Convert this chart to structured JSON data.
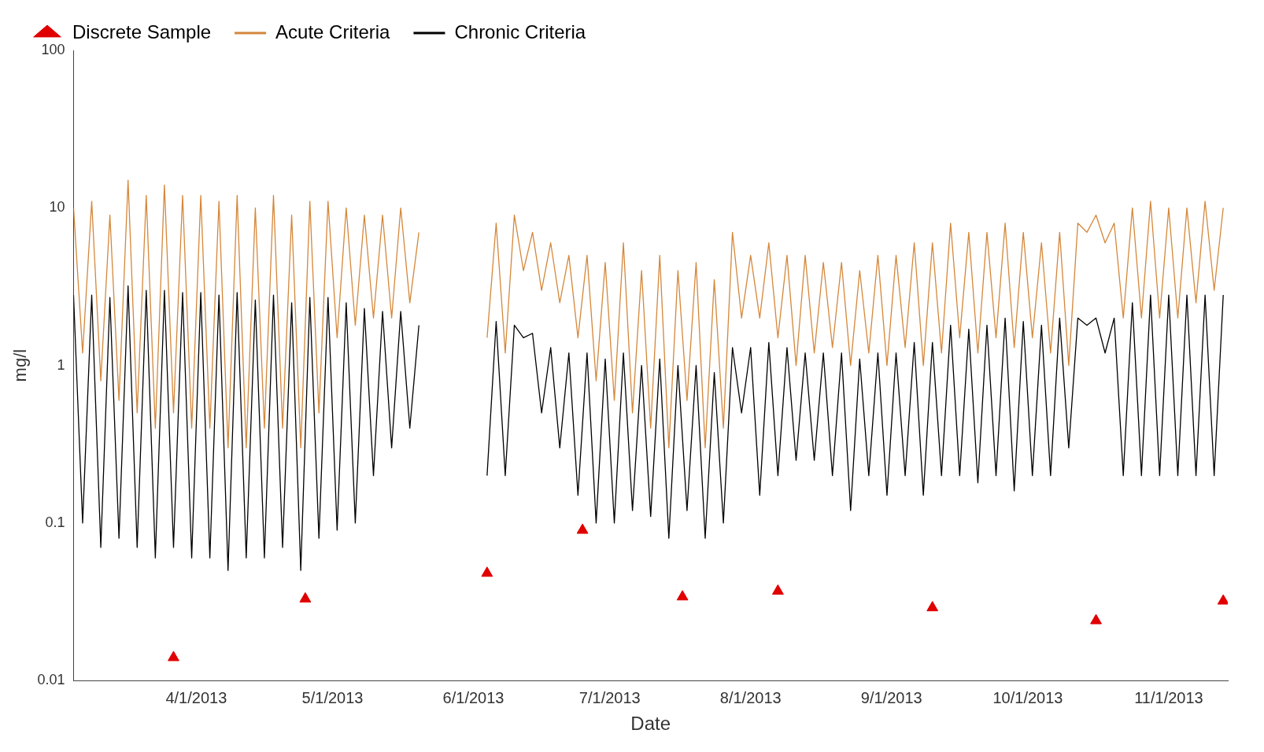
{
  "chart_data": {
    "type": "line",
    "xlabel": "Date",
    "ylabel": "mg/l",
    "log": "y",
    "grid": false,
    "legend": "top left",
    "x": [
      "2013-03-05",
      "2013-03-07",
      "2013-03-09",
      "2013-03-11",
      "2013-03-13",
      "2013-03-15",
      "2013-03-17",
      "2013-03-19",
      "2013-03-21",
      "2013-03-23",
      "2013-03-25",
      "2013-03-27",
      "2013-03-29",
      "2013-03-31",
      "2013-04-02",
      "2013-04-04",
      "2013-04-06",
      "2013-04-08",
      "2013-04-10",
      "2013-04-12",
      "2013-04-14",
      "2013-04-16",
      "2013-04-18",
      "2013-04-20",
      "2013-04-22",
      "2013-04-24",
      "2013-04-26",
      "2013-04-28",
      "2013-04-30",
      "2013-05-02",
      "2013-05-04",
      "2013-05-06",
      "2013-05-08",
      "2013-05-10",
      "2013-05-12",
      "2013-05-14",
      "2013-05-16",
      "2013-05-18",
      "2013-05-20",
      "2013-05-27",
      "2013-06-04",
      "2013-06-06",
      "2013-06-08",
      "2013-06-10",
      "2013-06-12",
      "2013-06-14",
      "2013-06-16",
      "2013-06-18",
      "2013-06-20",
      "2013-06-22",
      "2013-06-24",
      "2013-06-26",
      "2013-06-28",
      "2013-06-30",
      "2013-07-02",
      "2013-07-04",
      "2013-07-06",
      "2013-07-08",
      "2013-07-10",
      "2013-07-12",
      "2013-07-14",
      "2013-07-16",
      "2013-07-18",
      "2013-07-20",
      "2013-07-22",
      "2013-07-24",
      "2013-07-26",
      "2013-07-28",
      "2013-07-30",
      "2013-08-01",
      "2013-08-03",
      "2013-08-05",
      "2013-08-07",
      "2013-08-09",
      "2013-08-11",
      "2013-08-13",
      "2013-08-15",
      "2013-08-17",
      "2013-08-19",
      "2013-08-21",
      "2013-08-23",
      "2013-08-25",
      "2013-08-27",
      "2013-08-29",
      "2013-08-31",
      "2013-09-02",
      "2013-09-04",
      "2013-09-06",
      "2013-09-08",
      "2013-09-10",
      "2013-09-12",
      "2013-09-14",
      "2013-09-16",
      "2013-09-18",
      "2013-09-20",
      "2013-09-22",
      "2013-09-24",
      "2013-09-26",
      "2013-09-28",
      "2013-09-30",
      "2013-10-02",
      "2013-10-04",
      "2013-10-06",
      "2013-10-08",
      "2013-10-10",
      "2013-10-12",
      "2013-10-14",
      "2013-10-16",
      "2013-10-18",
      "2013-10-20",
      "2013-10-22",
      "2013-10-24",
      "2013-10-26",
      "2013-10-28",
      "2013-10-30",
      "2013-11-01",
      "2013-11-03",
      "2013-11-05",
      "2013-11-07",
      "2013-11-09",
      "2013-11-11",
      "2013-11-13"
    ],
    "xlim": [
      "2013-03-05",
      "2013-11-14"
    ],
    "xticks": [
      {
        "value": "2013-04-01",
        "label": "4/1/2013"
      },
      {
        "value": "2013-05-01",
        "label": "5/1/2013"
      },
      {
        "value": "2013-06-01",
        "label": "6/1/2013"
      },
      {
        "value": "2013-07-01",
        "label": "7/1/2013"
      },
      {
        "value": "2013-08-01",
        "label": "8/1/2013"
      },
      {
        "value": "2013-09-01",
        "label": "9/1/2013"
      },
      {
        "value": "2013-10-01",
        "label": "10/1/2013"
      },
      {
        "value": "2013-11-01",
        "label": "11/1/2013"
      }
    ],
    "ylim": [
      0.01,
      100
    ],
    "yticks": [
      0.01,
      0.1,
      1,
      10,
      100
    ],
    "series": [
      {
        "name": "Discrete Sample",
        "type": "scatter",
        "marker": "triangle",
        "color": "#e00000",
        "x": [
          "2013-03-27",
          "2013-04-25",
          "2013-06-04",
          "2013-06-25",
          "2013-07-17",
          "2013-08-07",
          "2013-09-10",
          "2013-10-16",
          "2013-11-13"
        ],
        "values": [
          0.014,
          0.033,
          0.048,
          0.09,
          0.034,
          0.037,
          0.029,
          0.024,
          0.032
        ]
      },
      {
        "name": "Acute Criteria",
        "marker": "none",
        "color": "#d4873a",
        "values": [
          10,
          1.2,
          11,
          0.8,
          9,
          0.6,
          15,
          0.5,
          12,
          0.4,
          14,
          0.5,
          12,
          0.4,
          12,
          0.4,
          11,
          0.3,
          12,
          0.3,
          10,
          0.4,
          12,
          0.4,
          9,
          0.3,
          11,
          0.5,
          11,
          1.5,
          10,
          1.8,
          9,
          2,
          9,
          2,
          10,
          2.5,
          7,
          null,
          1.5,
          8,
          1.2,
          9,
          4,
          7,
          3,
          6,
          2.5,
          5,
          1.5,
          5,
          0.8,
          4.5,
          0.6,
          6,
          0.5,
          4,
          0.4,
          5,
          0.3,
          4,
          0.6,
          4.5,
          0.3,
          3.5,
          0.4,
          7,
          2,
          5,
          2,
          6,
          1.5,
          5,
          1,
          5,
          1.2,
          4.5,
          1.3,
          4.5,
          1,
          4,
          1.2,
          5,
          1,
          5,
          1.3,
          6,
          1,
          6,
          1.2,
          8,
          1.5,
          7,
          1.2,
          7,
          1.5,
          8,
          1.3,
          7,
          1.5,
          6,
          1.2,
          7,
          1,
          8,
          7,
          9,
          6,
          8,
          2,
          10,
          2,
          11,
          2,
          10,
          2,
          10,
          2.5,
          11,
          3,
          10
        ]
      },
      {
        "name": "Chronic Criteria",
        "marker": "none",
        "color": "#000000",
        "values": [
          2.8,
          0.1,
          2.8,
          0.07,
          2.7,
          0.08,
          3.2,
          0.07,
          3,
          0.06,
          3,
          0.07,
          2.9,
          0.06,
          2.9,
          0.06,
          2.8,
          0.05,
          2.9,
          0.06,
          2.6,
          0.06,
          2.8,
          0.07,
          2.5,
          0.05,
          2.7,
          0.08,
          2.7,
          0.09,
          2.5,
          0.1,
          2.3,
          0.2,
          2.2,
          0.3,
          2.2,
          0.4,
          1.8,
          null,
          0.2,
          1.9,
          0.2,
          1.8,
          1.5,
          1.6,
          0.5,
          1.3,
          0.3,
          1.2,
          0.15,
          1.2,
          0.1,
          1.1,
          0.1,
          1.2,
          0.12,
          1,
          0.11,
          1.1,
          0.08,
          1,
          0.12,
          1,
          0.08,
          0.9,
          0.1,
          1.3,
          0.5,
          1.3,
          0.15,
          1.4,
          0.2,
          1.3,
          0.25,
          1.2,
          0.25,
          1.2,
          0.2,
          1.2,
          0.12,
          1.1,
          0.2,
          1.2,
          0.15,
          1.2,
          0.2,
          1.4,
          0.15,
          1.4,
          0.2,
          1.8,
          0.2,
          1.7,
          0.18,
          1.8,
          0.2,
          2,
          0.16,
          1.9,
          0.2,
          1.8,
          0.2,
          2,
          0.3,
          2,
          1.8,
          2,
          1.2,
          2,
          0.2,
          2.5,
          0.2,
          2.8,
          0.2,
          2.8,
          0.2,
          2.8,
          0.2,
          2.8,
          0.2,
          2.8
        ]
      }
    ]
  }
}
